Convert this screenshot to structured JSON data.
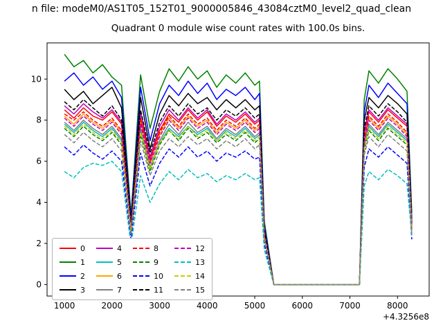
{
  "figure": {
    "background": "#ffffff",
    "suptitle": "n file: modeM0/AS1T05_152T01_9000005846_43084cztM0_level2_quad_clean",
    "axes_title": "Quadrant 0 module wise count rates with 100.0s bins."
  },
  "chart_data": {
    "type": "line",
    "title": "Quadrant 0 module wise count rates with 100.0s bins.",
    "suptitle": "n file: modeM0/AS1T05_152T01_9000005846_43084cztM0_level2_quad_clean",
    "xlabel": "",
    "ylabel": "",
    "x_offset_text": "+4.3256e8",
    "xlim": [
      635,
      8665
    ],
    "ylim": [
      -0.56,
      11.76
    ],
    "x_ticks": [
      1000,
      2000,
      3000,
      4000,
      5000,
      6000,
      7000,
      8000
    ],
    "y_ticks": [
      0,
      2,
      4,
      6,
      8,
      10
    ],
    "grid": false,
    "legend_position": "lower left",
    "x": [
      1000,
      1200,
      1400,
      1600,
      1800,
      2000,
      2200,
      2400,
      2600,
      2800,
      3000,
      3200,
      3400,
      3600,
      3800,
      4000,
      4200,
      4400,
      4600,
      4800,
      5000,
      5100,
      5200,
      5400,
      5600,
      5800,
      6000,
      6200,
      6400,
      6600,
      6800,
      7000,
      7200,
      7300,
      7400,
      7600,
      7800,
      8000,
      8200,
      8300
    ],
    "series": [
      {
        "name": "0",
        "color": "#ff0000",
        "linestyle": "solid",
        "values": [
          8.5,
          8.1,
          8.6,
          8.2,
          8.0,
          8.4,
          7.8,
          2.8,
          8.1,
          6.1,
          7.5,
          8.3,
          7.9,
          8.5,
          8.0,
          8.4,
          7.7,
          8.2,
          7.9,
          8.3,
          7.8,
          8.0,
          2.5,
          0,
          0,
          0,
          0,
          0,
          0,
          0,
          0,
          0,
          0,
          7.3,
          8.4,
          7.9,
          8.5,
          8.1,
          7.7,
          2.9
        ]
      },
      {
        "name": "1",
        "color": "#008000",
        "linestyle": "solid",
        "values": [
          11.2,
          10.6,
          10.9,
          10.3,
          10.7,
          10.1,
          9.7,
          3.4,
          10.2,
          7.6,
          9.4,
          10.5,
          9.9,
          10.6,
          10.0,
          10.4,
          9.6,
          10.2,
          9.8,
          10.3,
          9.7,
          9.9,
          3.1,
          0,
          0,
          0,
          0,
          0,
          0,
          0,
          0,
          0,
          0,
          9.0,
          10.4,
          9.8,
          10.5,
          10.0,
          9.4,
          3.5
        ]
      },
      {
        "name": "2",
        "color": "#0000ff",
        "linestyle": "solid",
        "values": [
          9.9,
          10.3,
          9.7,
          10.1,
          9.5,
          9.9,
          9.1,
          3.2,
          9.6,
          7.0,
          8.8,
          9.7,
          9.2,
          9.9,
          9.3,
          9.8,
          9.0,
          9.5,
          9.2,
          9.6,
          9.0,
          9.3,
          2.9,
          0,
          0,
          0,
          0,
          0,
          0,
          0,
          0,
          0,
          0,
          8.4,
          9.7,
          9.1,
          9.8,
          9.3,
          8.8,
          3.2
        ]
      },
      {
        "name": "3",
        "color": "#000000",
        "linestyle": "solid",
        "values": [
          9.5,
          9.0,
          9.4,
          8.8,
          9.2,
          9.6,
          8.6,
          3.0,
          9.1,
          6.6,
          8.3,
          9.2,
          8.7,
          9.3,
          8.8,
          9.1,
          8.5,
          9.0,
          8.6,
          9.0,
          8.5,
          8.7,
          2.7,
          0,
          0,
          0,
          0,
          0,
          0,
          0,
          0,
          0,
          0,
          8.0,
          9.1,
          8.6,
          9.2,
          8.8,
          8.3,
          3.0
        ]
      },
      {
        "name": "4",
        "color": "#bf00bf",
        "linestyle": "solid",
        "values": [
          8.7,
          8.3,
          8.8,
          8.4,
          8.1,
          8.5,
          7.9,
          2.9,
          8.4,
          6.2,
          7.7,
          8.5,
          8.0,
          8.6,
          8.1,
          8.5,
          7.8,
          8.3,
          8.0,
          8.4,
          7.9,
          8.1,
          2.6,
          0,
          0,
          0,
          0,
          0,
          0,
          0,
          0,
          0,
          0,
          7.4,
          8.5,
          8.0,
          8.6,
          8.2,
          7.8,
          2.9
        ]
      },
      {
        "name": "5",
        "color": "#00bfbf",
        "linestyle": "solid",
        "values": [
          7.8,
          7.4,
          7.9,
          7.5,
          7.2,
          7.6,
          7.0,
          2.6,
          7.5,
          5.6,
          6.9,
          7.6,
          7.2,
          7.7,
          7.3,
          7.6,
          7.0,
          7.5,
          7.2,
          7.6,
          7.1,
          7.3,
          2.3,
          0,
          0,
          0,
          0,
          0,
          0,
          0,
          0,
          0,
          0,
          6.7,
          7.7,
          7.2,
          7.8,
          7.4,
          7.0,
          2.6
        ]
      },
      {
        "name": "6",
        "color": "#ffa500",
        "linestyle": "solid",
        "values": [
          8.2,
          7.8,
          8.3,
          7.9,
          7.6,
          8.0,
          7.4,
          2.8,
          7.9,
          5.9,
          7.3,
          8.1,
          7.6,
          8.2,
          7.7,
          8.0,
          7.4,
          7.9,
          7.6,
          8.0,
          7.5,
          7.7,
          2.5,
          0,
          0,
          0,
          0,
          0,
          0,
          0,
          0,
          0,
          0,
          7.0,
          8.1,
          7.6,
          8.2,
          7.8,
          7.3,
          2.8
        ]
      },
      {
        "name": "7",
        "color": "#808080",
        "linestyle": "solid",
        "values": [
          7.9,
          7.5,
          8.0,
          7.6,
          7.3,
          7.7,
          7.1,
          2.7,
          7.6,
          5.7,
          7.0,
          7.8,
          7.3,
          7.9,
          7.4,
          7.7,
          7.1,
          7.6,
          7.3,
          7.7,
          7.2,
          7.4,
          2.4,
          0,
          0,
          0,
          0,
          0,
          0,
          0,
          0,
          0,
          0,
          6.8,
          7.8,
          7.3,
          7.9,
          7.5,
          7.1,
          2.7
        ]
      },
      {
        "name": "8",
        "color": "#ff0000",
        "linestyle": "dashed",
        "values": [
          8.3,
          8.0,
          8.4,
          8.0,
          7.7,
          8.1,
          7.5,
          2.8,
          8.0,
          6.0,
          7.4,
          8.2,
          7.7,
          8.3,
          7.8,
          8.1,
          7.5,
          8.0,
          7.7,
          8.1,
          7.6,
          7.8,
          2.5,
          0,
          0,
          0,
          0,
          0,
          0,
          0,
          0,
          0,
          0,
          7.1,
          8.2,
          7.7,
          8.3,
          7.9,
          7.4,
          2.8
        ]
      },
      {
        "name": "9",
        "color": "#008000",
        "linestyle": "dashed",
        "values": [
          7.6,
          7.2,
          7.7,
          7.3,
          7.0,
          7.4,
          6.8,
          2.5,
          7.3,
          5.5,
          6.8,
          7.5,
          7.0,
          7.6,
          7.1,
          7.4,
          6.9,
          7.3,
          7.0,
          7.4,
          6.9,
          7.1,
          2.3,
          0,
          0,
          0,
          0,
          0,
          0,
          0,
          0,
          0,
          0,
          6.5,
          7.5,
          7.0,
          7.6,
          7.2,
          6.8,
          2.5
        ]
      },
      {
        "name": "10",
        "color": "#0000ff",
        "linestyle": "dashed",
        "values": [
          6.7,
          6.3,
          6.8,
          6.4,
          6.1,
          6.5,
          6.0,
          2.2,
          6.4,
          4.8,
          5.9,
          6.6,
          6.2,
          6.7,
          6.2,
          6.5,
          6.0,
          6.4,
          6.2,
          6.5,
          6.1,
          6.2,
          2.0,
          0,
          0,
          0,
          0,
          0,
          0,
          0,
          0,
          0,
          0,
          5.7,
          6.6,
          6.2,
          6.7,
          6.3,
          5.9,
          2.2
        ]
      },
      {
        "name": "11",
        "color": "#000000",
        "linestyle": "dashed",
        "values": [
          8.9,
          8.5,
          9.0,
          8.6,
          8.2,
          8.7,
          8.0,
          3.0,
          8.5,
          6.4,
          7.9,
          8.7,
          8.2,
          8.8,
          8.3,
          8.6,
          8.0,
          8.5,
          8.2,
          8.6,
          8.1,
          8.3,
          2.7,
          0,
          0,
          0,
          0,
          0,
          0,
          0,
          0,
          0,
          0,
          7.6,
          8.7,
          8.2,
          8.8,
          8.4,
          7.9,
          3.0
        ]
      },
      {
        "name": "12",
        "color": "#bf00bf",
        "linestyle": "dashed",
        "values": [
          8.1,
          7.7,
          8.2,
          7.8,
          7.5,
          7.9,
          7.3,
          2.7,
          7.8,
          5.9,
          7.2,
          8.0,
          7.5,
          8.1,
          7.6,
          7.9,
          7.3,
          7.8,
          7.5,
          7.9,
          7.4,
          7.6,
          2.4,
          0,
          0,
          0,
          0,
          0,
          0,
          0,
          0,
          0,
          0,
          6.9,
          8.0,
          7.5,
          8.1,
          7.7,
          7.2,
          2.7
        ]
      },
      {
        "name": "13",
        "color": "#00bfbf",
        "linestyle": "dashed",
        "values": [
          5.5,
          5.2,
          5.7,
          5.9,
          5.8,
          6.0,
          5.5,
          1.9,
          5.3,
          4.0,
          4.9,
          5.5,
          5.1,
          5.6,
          5.2,
          5.4,
          5.0,
          5.3,
          5.1,
          5.4,
          5.1,
          5.2,
          1.7,
          0,
          0,
          0,
          0,
          0,
          0,
          0,
          0,
          0,
          0,
          4.8,
          5.5,
          5.1,
          5.6,
          5.3,
          4.9,
          2.4
        ]
      },
      {
        "name": "14",
        "color": "#cccc00",
        "linestyle": "dashed",
        "values": [
          7.7,
          7.3,
          7.8,
          7.4,
          7.1,
          7.5,
          6.9,
          2.6,
          7.4,
          5.6,
          6.9,
          7.5,
          7.1,
          7.7,
          7.2,
          7.5,
          7.0,
          7.4,
          7.1,
          7.5,
          7.0,
          7.2,
          2.3,
          0,
          0,
          0,
          0,
          0,
          0,
          0,
          0,
          0,
          0,
          6.6,
          7.6,
          7.1,
          7.7,
          7.3,
          6.9,
          2.6
        ]
      },
      {
        "name": "15",
        "color": "#808080",
        "linestyle": "dashed",
        "values": [
          7.3,
          6.9,
          7.4,
          7.0,
          6.7,
          7.1,
          6.5,
          2.4,
          7.0,
          5.3,
          6.5,
          7.1,
          6.7,
          7.2,
          6.8,
          7.1,
          6.6,
          7.0,
          6.7,
          7.1,
          6.6,
          6.8,
          2.2,
          0,
          0,
          0,
          0,
          0,
          0,
          0,
          0,
          0,
          0,
          6.3,
          7.2,
          6.7,
          7.3,
          6.9,
          6.5,
          2.4
        ]
      }
    ]
  }
}
